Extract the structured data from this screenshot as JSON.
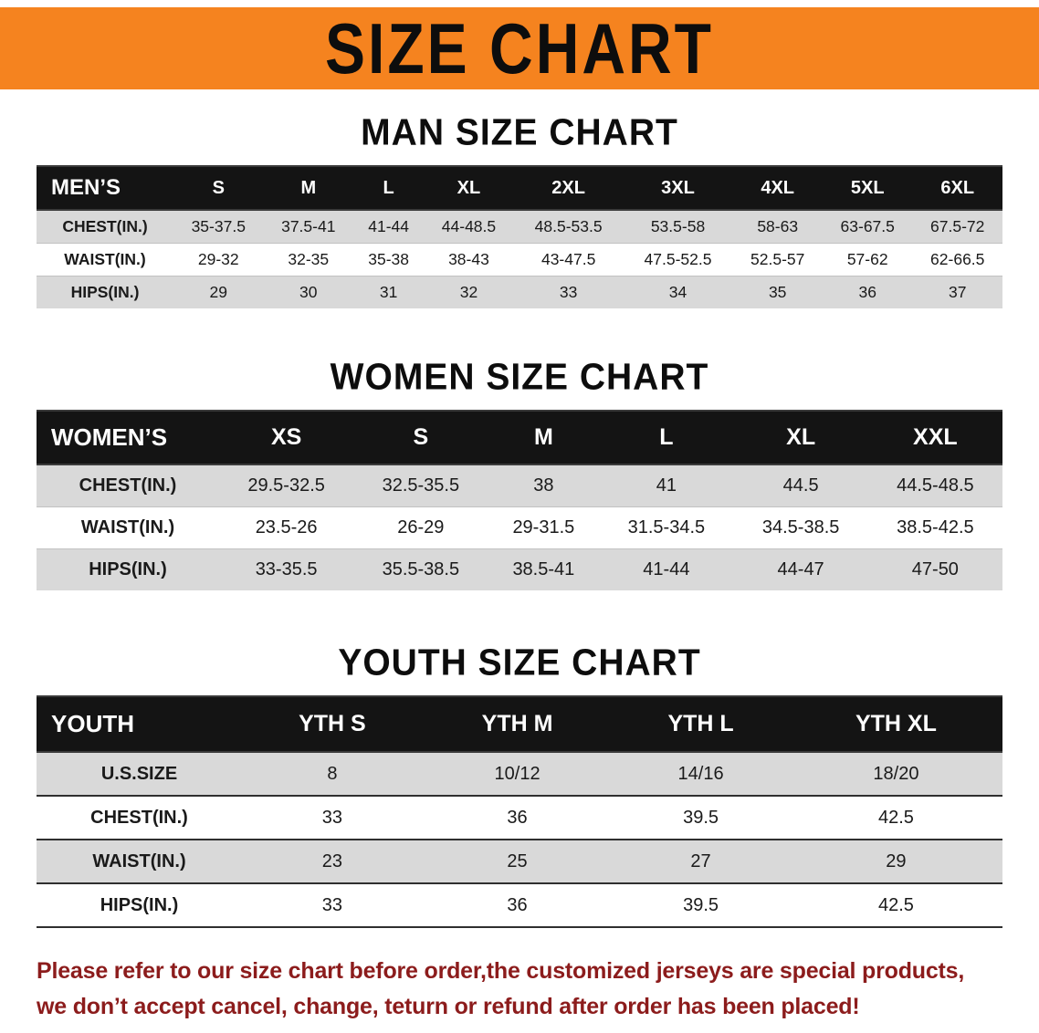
{
  "banner": {
    "title": "SIZE CHART",
    "background_color": "#f5831f",
    "text_color": "#0d0d0d"
  },
  "colors": {
    "table_header_bg": "#141414",
    "table_header_text": "#ffffff",
    "stripe_row_bg": "#d9d9d9",
    "notice_text": "#8c1c1c"
  },
  "chart_data": [
    {
      "type": "table",
      "title": "MAN SIZE CHART",
      "header": [
        "MEN’S",
        "S",
        "M",
        "L",
        "XL",
        "2XL",
        "3XL",
        "4XL",
        "5XL",
        "6XL"
      ],
      "rows": [
        [
          "CHEST(IN.)",
          "35-37.5",
          "37.5-41",
          "41-44",
          "44-48.5",
          "48.5-53.5",
          "53.5-58",
          "58-63",
          "63-67.5",
          "67.5-72"
        ],
        [
          "WAIST(IN.)",
          "29-32",
          "32-35",
          "35-38",
          "38-43",
          "43-47.5",
          "47.5-52.5",
          "52.5-57",
          "57-62",
          "62-66.5"
        ],
        [
          "HIPS(IN.)",
          "29",
          "30",
          "31",
          "32",
          "33",
          "34",
          "35",
          "36",
          "37"
        ]
      ]
    },
    {
      "type": "table",
      "title": "WOMEN SIZE CHART",
      "header": [
        "WOMEN’S",
        "XS",
        "S",
        "M",
        "L",
        "XL",
        "XXL"
      ],
      "rows": [
        [
          "CHEST(IN.)",
          "29.5-32.5",
          "32.5-35.5",
          "38",
          "41",
          "44.5",
          "44.5-48.5"
        ],
        [
          "WAIST(IN.)",
          "23.5-26",
          "26-29",
          "29-31.5",
          "31.5-34.5",
          "34.5-38.5",
          "38.5-42.5"
        ],
        [
          "HIPS(IN.)",
          "33-35.5",
          "35.5-38.5",
          "38.5-41",
          "41-44",
          "44-47",
          "47-50"
        ]
      ]
    },
    {
      "type": "table",
      "title": "YOUTH SIZE CHART",
      "header": [
        "YOUTH",
        "YTH S",
        "YTH M",
        "YTH L",
        "YTH XL"
      ],
      "rows": [
        [
          "U.S.SIZE",
          "8",
          "10/12",
          "14/16",
          "18/20"
        ],
        [
          "CHEST(IN.)",
          "33",
          "36",
          "39.5",
          "42.5"
        ],
        [
          "WAIST(IN.)",
          "23",
          "25",
          "27",
          "29"
        ],
        [
          "HIPS(IN.)",
          "33",
          "36",
          "39.5",
          "42.5"
        ]
      ]
    }
  ],
  "footer": {
    "line1": "Please refer to our size chart before order,the customized jerseys are special products,",
    "line2": "we don’t accept cancel, change, teturn or refund after order has been placed!"
  }
}
